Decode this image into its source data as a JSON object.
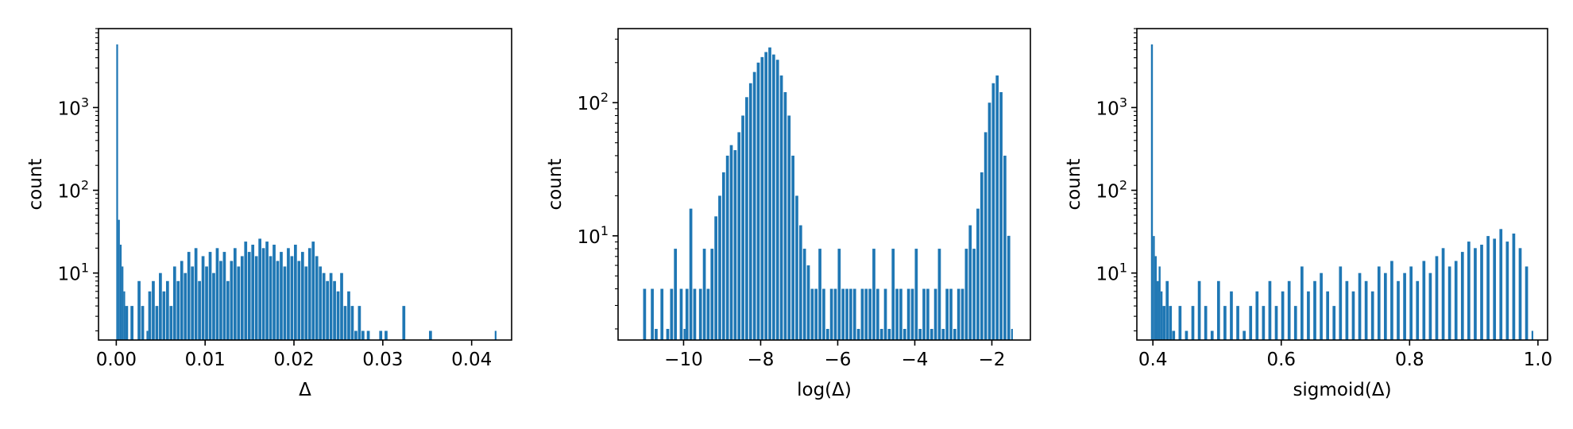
{
  "chart_data": [
    {
      "type": "histogram",
      "xlabel": "Δ",
      "ylabel": "count",
      "yscale": "log",
      "xlim": [
        -0.002,
        0.0445
      ],
      "ylim": [
        1.55,
        9000
      ],
      "xticks": [
        0.0,
        0.01,
        0.02,
        0.03,
        0.04
      ],
      "xtick_labels": [
        "0.00",
        "0.01",
        "0.02",
        "0.03",
        "0.04"
      ],
      "yticks": [
        1000,
        100,
        10
      ],
      "ytick_labels": [
        "10^3",
        "10^2",
        "10^1"
      ],
      "color": "#1f77b4",
      "bins": {
        "x": [
          0.0,
          0.0002,
          0.0004,
          0.0006,
          0.0008,
          0.001,
          0.0016,
          0.0024,
          0.0028,
          0.0034,
          0.0036,
          0.004,
          0.0044,
          0.0048,
          0.0052,
          0.0056,
          0.006,
          0.0064,
          0.0068,
          0.0072,
          0.0076,
          0.008,
          0.0084,
          0.0088,
          0.0092,
          0.0096,
          0.01,
          0.0104,
          0.0108,
          0.0112,
          0.0116,
          0.012,
          0.0124,
          0.0128,
          0.0132,
          0.0136,
          0.014,
          0.0144,
          0.0148,
          0.0152,
          0.0156,
          0.016,
          0.0164,
          0.0168,
          0.0172,
          0.0176,
          0.018,
          0.0184,
          0.0188,
          0.0192,
          0.0196,
          0.02,
          0.0204,
          0.0208,
          0.0212,
          0.0216,
          0.022,
          0.0224,
          0.0228,
          0.0232,
          0.0236,
          0.024,
          0.0244,
          0.0248,
          0.0252,
          0.0256,
          0.026,
          0.0264,
          0.0268,
          0.0272,
          0.0276,
          0.0282,
          0.0296,
          0.0302,
          0.0322,
          0.0352,
          0.0426
        ],
        "counts": [
          5800,
          44,
          22,
          12,
          6,
          4,
          4,
          8,
          4,
          2,
          6,
          8,
          4,
          10,
          6,
          8,
          4,
          12,
          8,
          14,
          10,
          18,
          12,
          20,
          8,
          16,
          12,
          18,
          10,
          20,
          14,
          18,
          8,
          14,
          20,
          12,
          16,
          24,
          18,
          22,
          16,
          26,
          20,
          24,
          16,
          22,
          14,
          18,
          12,
          20,
          16,
          22,
          14,
          18,
          12,
          20,
          24,
          16,
          12,
          10,
          8,
          10,
          8,
          6,
          10,
          4,
          6,
          4,
          2,
          4,
          2,
          2,
          2,
          2,
          4,
          2,
          2
        ]
      }
    },
    {
      "type": "histogram",
      "xlabel": "log(Δ)",
      "ylabel": "count",
      "yscale": "log",
      "xlim": [
        -11.7,
        -1.0
      ],
      "ylim": [
        1.65,
        360
      ],
      "xticks": [
        -10,
        -8,
        -6,
        -4,
        -2
      ],
      "xtick_labels": [
        "−10",
        "−8",
        "−6",
        "−4",
        "−2"
      ],
      "yticks": [
        100,
        10
      ],
      "ytick_labels": [
        "10^2",
        "10^1"
      ],
      "color": "#1f77b4",
      "bins": {
        "x": [
          -11.05,
          -10.85,
          -10.75,
          -10.6,
          -10.45,
          -10.35,
          -10.25,
          -10.1,
          -10.0,
          -9.95,
          -9.85,
          -9.75,
          -9.6,
          -9.5,
          -9.4,
          -9.3,
          -9.2,
          -9.1,
          -9.0,
          -8.9,
          -8.8,
          -8.7,
          -8.6,
          -8.5,
          -8.4,
          -8.3,
          -8.2,
          -8.1,
          -8.0,
          -7.9,
          -7.8,
          -7.7,
          -7.6,
          -7.5,
          -7.4,
          -7.3,
          -7.2,
          -7.1,
          -7.0,
          -6.9,
          -6.8,
          -6.7,
          -6.6,
          -6.5,
          -6.4,
          -6.3,
          -6.2,
          -6.1,
          -6.0,
          -5.9,
          -5.8,
          -5.7,
          -5.6,
          -5.5,
          -5.4,
          -5.3,
          -5.2,
          -5.1,
          -5.0,
          -4.9,
          -4.8,
          -4.7,
          -4.6,
          -4.5,
          -4.4,
          -4.3,
          -4.2,
          -4.1,
          -4.0,
          -3.9,
          -3.8,
          -3.7,
          -3.6,
          -3.5,
          -3.4,
          -3.3,
          -3.2,
          -3.1,
          -3.0,
          -2.9,
          -2.8,
          -2.7,
          -2.6,
          -2.5,
          -2.4,
          -2.3,
          -2.2,
          -2.1,
          -2.0,
          -1.9,
          -1.8,
          -1.7,
          -1.6,
          -1.5
        ],
        "counts": [
          4,
          4,
          2,
          4,
          2,
          4,
          8,
          4,
          2,
          4,
          16,
          4,
          4,
          8,
          4,
          8,
          14,
          20,
          30,
          40,
          48,
          44,
          60,
          80,
          110,
          140,
          170,
          200,
          220,
          240,
          260,
          230,
          210,
          160,
          120,
          80,
          40,
          20,
          12,
          8,
          6,
          4,
          4,
          8,
          4,
          2,
          4,
          4,
          8,
          4,
          4,
          4,
          4,
          2,
          4,
          4,
          4,
          8,
          4,
          2,
          4,
          2,
          8,
          4,
          4,
          2,
          4,
          4,
          8,
          2,
          4,
          4,
          2,
          4,
          8,
          2,
          4,
          4,
          2,
          4,
          4,
          8,
          12,
          8,
          16,
          30,
          60,
          100,
          140,
          160,
          120,
          40,
          10,
          2
        ]
      }
    },
    {
      "type": "histogram",
      "xlabel": "sigmoid(Δ)",
      "ylabel": "count",
      "yscale": "log",
      "xlim": [
        0.375,
        1.015
      ],
      "ylim": [
        1.55,
        9000
      ],
      "xticks": [
        0.4,
        0.6,
        0.8,
        1.0
      ],
      "xtick_labels": [
        "0.4",
        "0.6",
        "0.8",
        "1.0"
      ],
      "yticks": [
        1000,
        100,
        10
      ],
      "ytick_labels": [
        "10^3",
        "10^2",
        "10^1"
      ],
      "color": "#1f77b4",
      "bins": {
        "x": [
          0.397,
          0.4,
          0.403,
          0.406,
          0.409,
          0.412,
          0.415,
          0.42,
          0.425,
          0.43,
          0.44,
          0.45,
          0.46,
          0.47,
          0.48,
          0.49,
          0.5,
          0.51,
          0.52,
          0.53,
          0.54,
          0.55,
          0.56,
          0.57,
          0.58,
          0.59,
          0.6,
          0.61,
          0.62,
          0.63,
          0.64,
          0.65,
          0.66,
          0.67,
          0.68,
          0.69,
          0.7,
          0.71,
          0.72,
          0.73,
          0.74,
          0.75,
          0.76,
          0.77,
          0.78,
          0.79,
          0.8,
          0.81,
          0.82,
          0.83,
          0.84,
          0.85,
          0.86,
          0.87,
          0.88,
          0.89,
          0.9,
          0.91,
          0.92,
          0.93,
          0.94,
          0.95,
          0.96,
          0.97,
          0.98,
          0.99
        ],
        "counts": [
          5800,
          28,
          16,
          8,
          12,
          6,
          4,
          8,
          4,
          2,
          4,
          2,
          4,
          8,
          4,
          2,
          8,
          4,
          6,
          4,
          2,
          4,
          6,
          4,
          8,
          4,
          6,
          8,
          4,
          12,
          6,
          8,
          10,
          6,
          4,
          12,
          8,
          6,
          10,
          8,
          6,
          12,
          10,
          14,
          8,
          10,
          12,
          8,
          14,
          10,
          16,
          20,
          12,
          14,
          18,
          24,
          20,
          22,
          28,
          26,
          34,
          24,
          30,
          20,
          12,
          2
        ]
      }
    }
  ]
}
